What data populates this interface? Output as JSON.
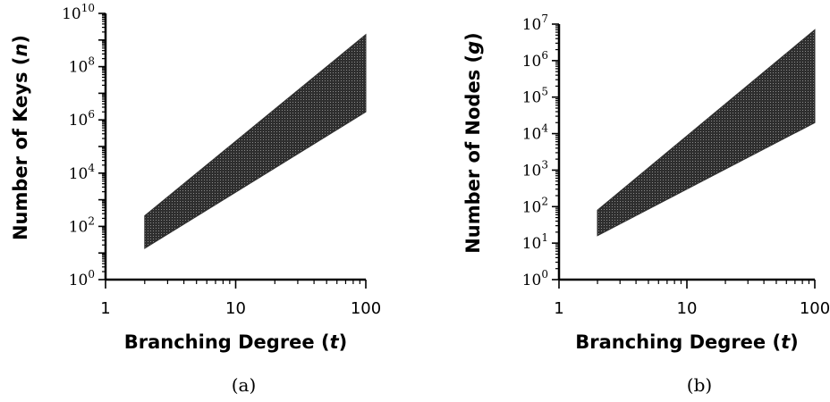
{
  "chart_data": [
    {
      "type": "area",
      "panel_label": "(a)",
      "xlabel": "Branching Degree (t)",
      "xlabel_parts": [
        "Branching Degree (",
        "t",
        ")"
      ],
      "ylabel": "Number of Keys (n)",
      "ylabel_parts": [
        "Number of Keys (",
        "n",
        ")"
      ],
      "xscale": "log",
      "yscale": "log",
      "xlim": [
        1,
        100
      ],
      "ylim": [
        1,
        10000000000
      ],
      "xticks": [
        {
          "value": 1,
          "label": "1"
        },
        {
          "value": 10,
          "label": "10"
        },
        {
          "value": 100,
          "label": "100"
        }
      ],
      "yticks": [
        {
          "value": 1,
          "base": "10",
          "exp": "0"
        },
        {
          "value": 100,
          "base": "10",
          "exp": "2"
        },
        {
          "value": 10000,
          "base": "10",
          "exp": "4"
        },
        {
          "value": 1000000,
          "base": "10",
          "exp": "6"
        },
        {
          "value": 100000000,
          "base": "10",
          "exp": "8"
        },
        {
          "value": 10000000000,
          "base": "10",
          "exp": "10"
        }
      ],
      "band": {
        "x": [
          2,
          100
        ],
        "upper": [
          250,
          1600000000
        ],
        "lower": [
          15,
          2000000
        ]
      },
      "grid": false,
      "fill_color": "#2e2e2e"
    },
    {
      "type": "area",
      "panel_label": "(b)",
      "xlabel": "Branching Degree (t)",
      "xlabel_parts": [
        "Branching Degree (",
        "t",
        ")"
      ],
      "ylabel": "Number of Nodes (g)",
      "ylabel_parts": [
        "Number of Nodes (",
        "g",
        ")"
      ],
      "xscale": "log",
      "yscale": "log",
      "xlim": [
        1,
        100
      ],
      "ylim": [
        1,
        10000000
      ],
      "xticks": [
        {
          "value": 1,
          "label": "1"
        },
        {
          "value": 10,
          "label": "10"
        },
        {
          "value": 100,
          "label": "100"
        }
      ],
      "yticks": [
        {
          "value": 1,
          "base": "10",
          "exp": "0"
        },
        {
          "value": 10,
          "base": "10",
          "exp": "1"
        },
        {
          "value": 100,
          "base": "10",
          "exp": "2"
        },
        {
          "value": 1000,
          "base": "10",
          "exp": "3"
        },
        {
          "value": 10000,
          "base": "10",
          "exp": "4"
        },
        {
          "value": 100000,
          "base": "10",
          "exp": "5"
        },
        {
          "value": 1000000,
          "base": "10",
          "exp": "6"
        },
        {
          "value": 10000000,
          "base": "10",
          "exp": "7"
        }
      ],
      "band": {
        "x": [
          2,
          100
        ],
        "upper": [
          80,
          7000000
        ],
        "lower": [
          16,
          20000
        ]
      },
      "grid": false,
      "fill_color": "#2e2e2e"
    }
  ]
}
